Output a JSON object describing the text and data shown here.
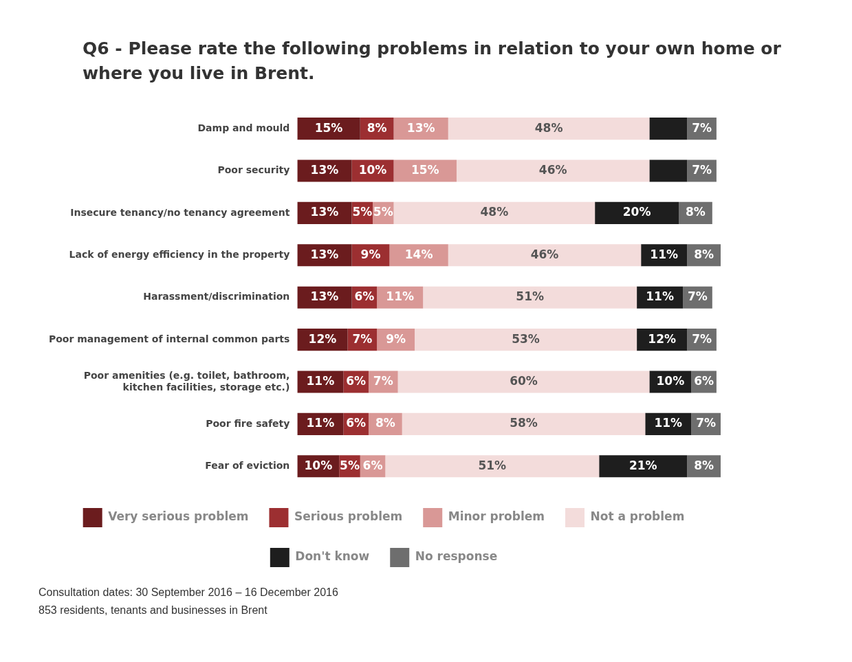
{
  "chart_data": {
    "type": "bar",
    "orientation": "horizontal",
    "stacked": true,
    "title": "Q6 - Please rate the following problems in relation to your own home or where you live in Brent.",
    "categories": [
      "Damp and mould",
      "Poor security",
      "Insecure tenancy/no tenancy agreement",
      "Lack of energy efficiency in the property",
      "Harassment/discrimination",
      "Poor management of internal common parts",
      "Poor amenities (e.g. toilet, bathroom, kitchen facilities, storage etc.)",
      "Poor fire safety",
      "Fear of eviction"
    ],
    "series": [
      {
        "name": "Very serious problem",
        "color": "#6b1c1e",
        "values": [
          15,
          13,
          13,
          13,
          13,
          12,
          11,
          11,
          10
        ],
        "value_labels": [
          "15%",
          "13%",
          "13%",
          "13%",
          "13%",
          "12%",
          "11%",
          "11%",
          "10%"
        ]
      },
      {
        "name": "Serious problem",
        "color": "#9c2f31",
        "values": [
          8,
          10,
          5,
          9,
          6,
          7,
          6,
          6,
          5
        ],
        "value_labels": [
          "8%",
          "10%",
          "5%",
          "9%",
          "6%",
          "7%",
          "6%",
          "6%",
          "5%"
        ]
      },
      {
        "name": "Minor problem",
        "color": "#d99896",
        "values": [
          13,
          15,
          5,
          14,
          11,
          9,
          7,
          8,
          6
        ],
        "value_labels": [
          "13%",
          "15%",
          "5%",
          "14%",
          "11%",
          "9%",
          "7%",
          "8%",
          "6%"
        ]
      },
      {
        "name": "Not a problem",
        "color": "#f3dcdb",
        "values": [
          48,
          46,
          48,
          46,
          51,
          53,
          60,
          58,
          51
        ],
        "value_labels": [
          "48%",
          "46%",
          "48%",
          "46%",
          "51%",
          "53%",
          "60%",
          "58%",
          "51%"
        ]
      },
      {
        "name": "Don't know",
        "color": "#1e1e1e",
        "values": [
          9,
          9,
          20,
          11,
          11,
          12,
          10,
          11,
          21
        ],
        "value_labels": [
          null,
          null,
          "20%",
          "11%",
          "11%",
          "12%",
          "10%",
          "11%",
          "21%"
        ]
      },
      {
        "name": "No response",
        "color": "#6e6e6e",
        "values": [
          7,
          7,
          8,
          8,
          7,
          7,
          6,
          7,
          8
        ],
        "value_labels": [
          "7%",
          "7%",
          "8%",
          "8%",
          "7%",
          "7%",
          "6%",
          "7%",
          "8%"
        ]
      }
    ],
    "legend": "bottom",
    "tick_labels": "y",
    "annotations": [
      "Consultation dates: 30 September 2016 – 16 December 2016",
      "853 residents, tenants and businesses in Brent"
    ]
  }
}
